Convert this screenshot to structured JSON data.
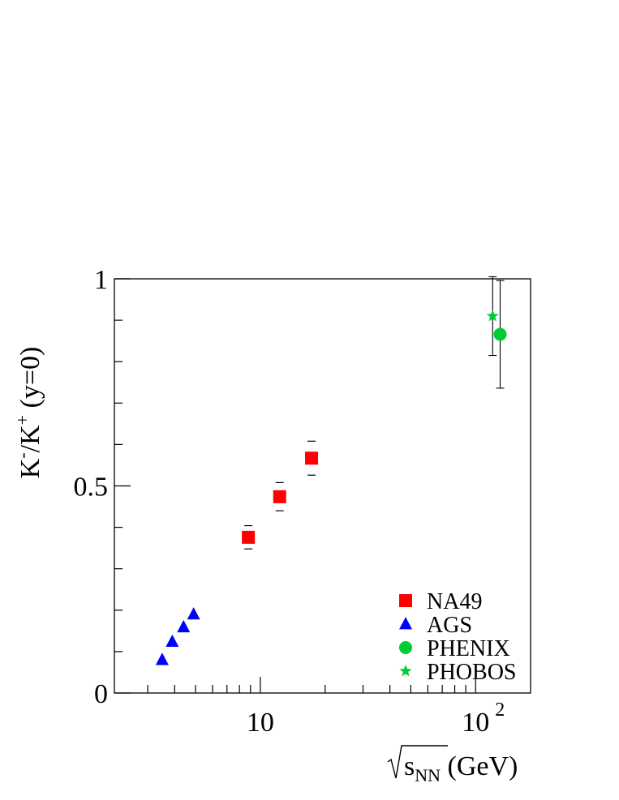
{
  "chart_data": {
    "type": "scatter",
    "title": "",
    "x_scale": "log",
    "xlim": [
      2.1,
      180
    ],
    "ylim": [
      0,
      1.0
    ],
    "grid": false,
    "legend_position": "bottom-right",
    "xlabel": {
      "root": "s",
      "sub": "NN",
      "unit": "(GeV)"
    },
    "ylabel": {
      "k1": "K",
      "sup1": "-",
      "k2": "K",
      "sup2": "+",
      "tail": "(y=0)"
    },
    "y_ticks": [
      {
        "value": 0,
        "label": "0"
      },
      {
        "value": 0.5,
        "label": "0.5"
      },
      {
        "value": 1,
        "label": "1"
      }
    ],
    "x_ticks": [
      {
        "value": 10,
        "label": "10",
        "exp": ""
      },
      {
        "value": 100,
        "label": "10",
        "exp": "2"
      }
    ],
    "series": [
      {
        "name": "NA49",
        "marker": "square",
        "color": "#ff0000",
        "points": [
          {
            "x": 8.8,
            "y": 0.376,
            "err": 0.028
          },
          {
            "x": 12.3,
            "y": 0.474,
            "err": 0.034
          },
          {
            "x": 17.3,
            "y": 0.567,
            "err": 0.041
          }
        ]
      },
      {
        "name": "AGS",
        "marker": "triangle",
        "color": "#0000ff",
        "points": [
          {
            "x": 3.5,
            "y": 0.08
          },
          {
            "x": 3.9,
            "y": 0.124
          },
          {
            "x": 4.4,
            "y": 0.159
          },
          {
            "x": 4.9,
            "y": 0.19
          }
        ]
      },
      {
        "name": "PHENIX",
        "marker": "circle",
        "color": "#00cc33",
        "points": [
          {
            "x": 130,
            "y": 0.866,
            "err": 0.13
          }
        ]
      },
      {
        "name": "PHOBOS",
        "marker": "star",
        "color": "#00cc33",
        "points": [
          {
            "x": 120,
            "y": 0.91,
            "err": 0.095
          }
        ]
      }
    ]
  }
}
